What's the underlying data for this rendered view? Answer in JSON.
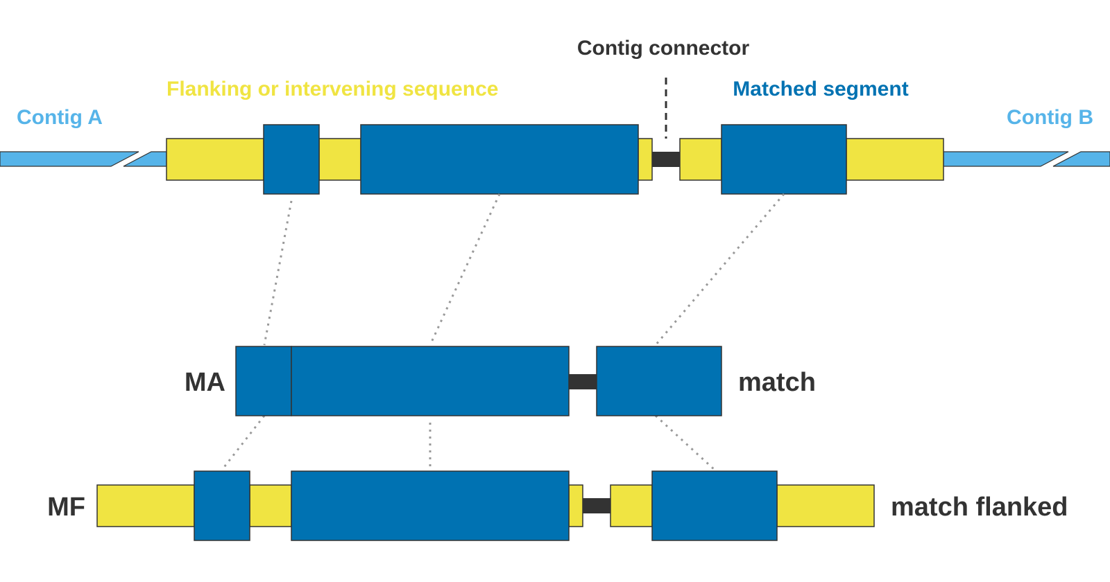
{
  "labels": {
    "contig_a": "Contig A",
    "contig_b": "Contig B",
    "flanking": "Flanking or intervening sequence",
    "matched_segment": "Matched segment",
    "contig_connector": "Contig connector",
    "ma_code": "MA",
    "ma_desc": "match",
    "mf_code": "MF",
    "mf_desc": "match flanked"
  },
  "colors": {
    "contig": "#56b4e9",
    "flanking": "#f0e442",
    "matched": "#0072b2",
    "connector": "#333333",
    "text_dark": "#333333"
  }
}
